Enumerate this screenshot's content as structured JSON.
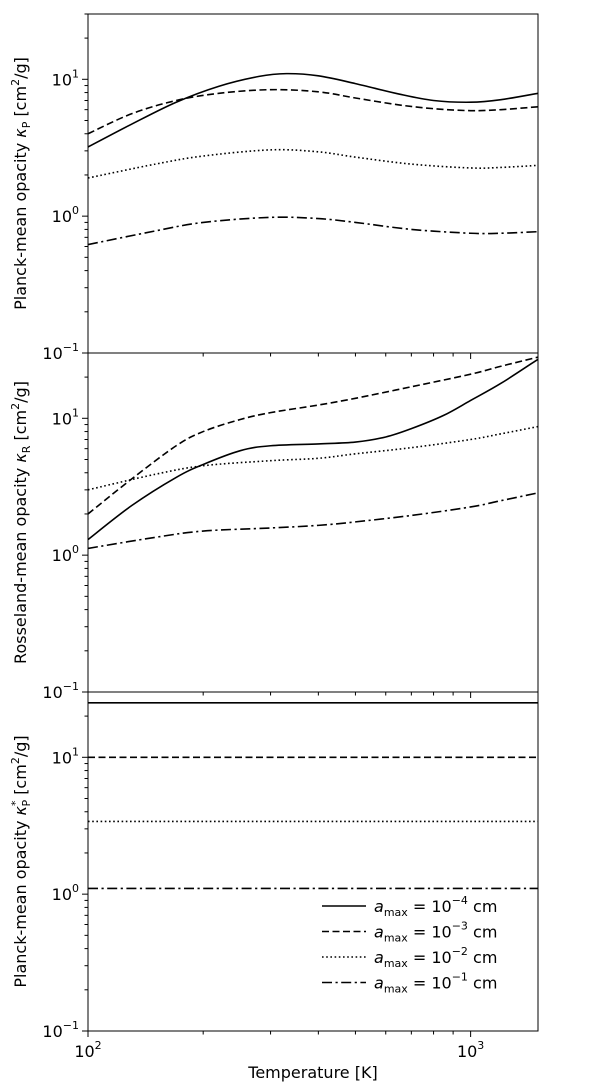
{
  "figure": {
    "xlabel": "Temperature [K]",
    "legend_placement": "lower-right",
    "shared_x_axis": true
  },
  "chart_data": [
    {
      "type": "line",
      "panel": "top",
      "ylabel": "Planck-mean opacity κP [cm²/g]",
      "ylabel_parts": {
        "prefix": "Planck-mean opacity ",
        "symbol": "κ",
        "sub": "P",
        "sup": "",
        "unit_pre": " [cm",
        "unit_sup": "2",
        "unit_post": "/g]"
      },
      "xlim": [
        100,
        1500
      ],
      "ylim": [
        0.1,
        30
      ],
      "xscale": "log",
      "yscale": "log",
      "x_ticks": [
        {
          "value": 100,
          "base": "10",
          "exp": "2"
        },
        {
          "value": 1000,
          "base": "10",
          "exp": "3"
        }
      ],
      "y_ticks": [
        {
          "value": 0.1,
          "base": "10",
          "exp": "−1"
        },
        {
          "value": 1,
          "base": "10",
          "exp": "0"
        },
        {
          "value": 10,
          "base": "10",
          "exp": "1"
        }
      ],
      "series": [
        {
          "name": "a_max = 10^-4 cm",
          "style": "solid",
          "x": [
            100,
            130,
            170,
            220,
            280,
            330,
            400,
            500,
            650,
            800,
            1000,
            1200,
            1500
          ],
          "y": [
            3.2,
            4.7,
            6.8,
            8.9,
            10.5,
            11.0,
            10.6,
            9.3,
            7.8,
            7.0,
            6.8,
            7.1,
            7.9
          ]
        },
        {
          "name": "a_max = 10^-3 cm",
          "style": "dashed",
          "x": [
            100,
            130,
            170,
            220,
            300,
            400,
            500,
            650,
            800,
            1000,
            1200,
            1500
          ],
          "y": [
            4.0,
            5.6,
            7.0,
            7.9,
            8.4,
            8.1,
            7.3,
            6.5,
            6.1,
            5.9,
            6.0,
            6.3
          ]
        },
        {
          "name": "a_max = 10^-2 cm",
          "style": "dotted",
          "x": [
            100,
            150,
            200,
            300,
            400,
            500,
            700,
            1000,
            1200,
            1500
          ],
          "y": [
            1.9,
            2.4,
            2.75,
            3.05,
            2.95,
            2.7,
            2.4,
            2.25,
            2.27,
            2.35
          ]
        },
        {
          "name": "a_max = 10^-1 cm",
          "style": "dashdot",
          "x": [
            100,
            150,
            200,
            300,
            400,
            500,
            700,
            1000,
            1200,
            1500
          ],
          "y": [
            0.62,
            0.78,
            0.9,
            0.98,
            0.96,
            0.9,
            0.8,
            0.75,
            0.75,
            0.77
          ]
        }
      ]
    },
    {
      "type": "line",
      "panel": "middle",
      "ylabel": "Rosseland-mean opacity κR [cm²/g]",
      "ylabel_parts": {
        "prefix": "Rosseland-mean opacity ",
        "symbol": "κ",
        "sub": "R",
        "sup": "",
        "unit_pre": " [cm",
        "unit_sup": "2",
        "unit_post": "/g]"
      },
      "xlim": [
        100,
        1500
      ],
      "ylim": [
        0.1,
        30
      ],
      "xscale": "log",
      "yscale": "log",
      "x_ticks": [
        {
          "value": 100,
          "base": "10",
          "exp": "2"
        },
        {
          "value": 1000,
          "base": "10",
          "exp": "3"
        }
      ],
      "y_ticks": [
        {
          "value": 0.1,
          "base": "10",
          "exp": "−1"
        },
        {
          "value": 1,
          "base": "10",
          "exp": "0"
        },
        {
          "value": 10,
          "base": "10",
          "exp": "1"
        }
      ],
      "series": [
        {
          "name": "a_max = 10^-4 cm",
          "style": "solid",
          "x": [
            100,
            130,
            170,
            200,
            250,
            300,
            400,
            500,
            600,
            700,
            850,
            1000,
            1200,
            1500
          ],
          "y": [
            1.3,
            2.3,
            3.7,
            4.6,
            5.8,
            6.3,
            6.5,
            6.7,
            7.3,
            8.4,
            10.5,
            13.5,
            18.0,
            27.0
          ]
        },
        {
          "name": "a_max = 10^-3 cm",
          "style": "dashed",
          "x": [
            100,
            130,
            170,
            200,
            250,
            300,
            400,
            500,
            700,
            1000,
            1200,
            1500
          ],
          "y": [
            2.0,
            3.6,
            6.3,
            8.0,
            9.8,
            11.0,
            12.5,
            14.0,
            17.0,
            21.0,
            24.0,
            28.0
          ]
        },
        {
          "name": "a_max = 10^-2 cm",
          "style": "dotted",
          "x": [
            100,
            150,
            200,
            300,
            400,
            500,
            700,
            1000,
            1200,
            1500
          ],
          "y": [
            3.0,
            3.9,
            4.5,
            4.9,
            5.1,
            5.5,
            6.1,
            7.0,
            7.7,
            8.7
          ]
        },
        {
          "name": "a_max = 10^-1 cm",
          "style": "dashdot",
          "x": [
            100,
            150,
            200,
            300,
            400,
            500,
            700,
            1000,
            1200,
            1500
          ],
          "y": [
            1.12,
            1.35,
            1.5,
            1.58,
            1.65,
            1.75,
            1.95,
            2.25,
            2.5,
            2.85
          ]
        }
      ]
    },
    {
      "type": "line",
      "panel": "bottom",
      "ylabel": "Planck-mean opacity κP* [cm²/g]",
      "ylabel_parts": {
        "prefix": "Planck-mean opacity ",
        "symbol": "κ",
        "sub": "P",
        "sup": "*",
        "unit_pre": " [cm",
        "unit_sup": "2",
        "unit_post": "/g]"
      },
      "xlim": [
        100,
        1500
      ],
      "ylim": [
        0.1,
        30
      ],
      "xscale": "log",
      "yscale": "log",
      "x_ticks": [
        {
          "value": 100,
          "base": "10",
          "exp": "2"
        },
        {
          "value": 1000,
          "base": "10",
          "exp": "3"
        }
      ],
      "y_ticks": [
        {
          "value": 0.1,
          "base": "10",
          "exp": "−1"
        },
        {
          "value": 1,
          "base": "10",
          "exp": "0"
        },
        {
          "value": 10,
          "base": "10",
          "exp": "1"
        }
      ],
      "series": [
        {
          "name": "a_max = 10^-4 cm",
          "style": "solid",
          "x": [
            100,
            1500
          ],
          "y": [
            25.0,
            25.0
          ]
        },
        {
          "name": "a_max = 10^-3 cm",
          "style": "dashed",
          "x": [
            100,
            1500
          ],
          "y": [
            10.0,
            10.0
          ]
        },
        {
          "name": "a_max = 10^-2 cm",
          "style": "dotted",
          "x": [
            100,
            1500
          ],
          "y": [
            3.4,
            3.4
          ]
        },
        {
          "name": "a_max = 10^-1 cm",
          "style": "dashdot",
          "x": [
            100,
            1500
          ],
          "y": [
            1.1,
            1.1
          ]
        }
      ]
    }
  ],
  "legend": {
    "entries": [
      {
        "style": "solid",
        "var": "a",
        "var_sub": "max",
        "eq": " = 10",
        "exp": "−4",
        "unit": " cm"
      },
      {
        "style": "dashed",
        "var": "a",
        "var_sub": "max",
        "eq": " = 10",
        "exp": "−3",
        "unit": " cm"
      },
      {
        "style": "dotted",
        "var": "a",
        "var_sub": "max",
        "eq": " = 10",
        "exp": "−2",
        "unit": " cm"
      },
      {
        "style": "dashdot",
        "var": "a",
        "var_sub": "max",
        "eq": " = 10",
        "exp": "−1",
        "unit": " cm"
      }
    ]
  }
}
